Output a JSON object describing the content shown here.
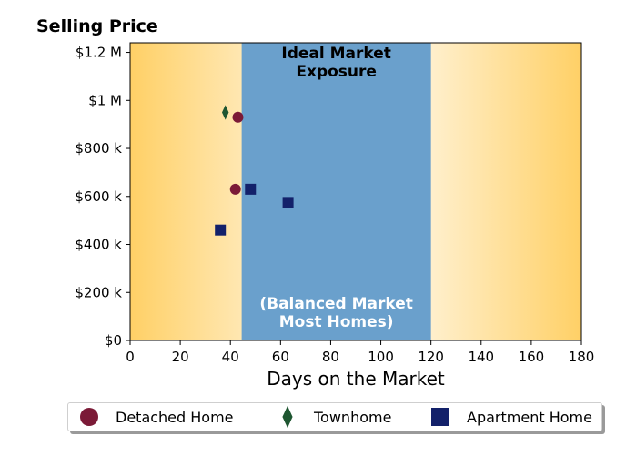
{
  "chart_data": {
    "type": "scatter",
    "title": "Selling Price",
    "xlabel": "Days on the Market",
    "ylabel": "",
    "xlim": [
      0,
      180
    ],
    "ylim": [
      0,
      1240000
    ],
    "x_ticks": [
      0,
      20,
      40,
      60,
      80,
      100,
      120,
      140,
      160,
      180
    ],
    "x_tick_labels": [
      "0",
      "20",
      "40",
      "60",
      "80",
      "100",
      "120",
      "140",
      "160",
      "180"
    ],
    "y_ticks": [
      0,
      200000,
      400000,
      600000,
      800000,
      1000000,
      1200000
    ],
    "y_tick_labels": [
      "$0",
      "$200 k",
      "$400 k",
      "$600 k",
      "$800 k",
      "$1 M",
      "$1.2 M"
    ],
    "grid": false,
    "legend_position": "bottom",
    "regions": [
      {
        "x_start": 44.5,
        "x_end": 120,
        "color": "#6aa0cc",
        "label_top": "Ideal Market\nExposure",
        "label_bottom": "(Balanced Market\nMost Homes)"
      }
    ],
    "background_gradient": {
      "edge_color": "#ffd066",
      "center_color": "#ffffff"
    },
    "series": [
      {
        "name": "Detached Home",
        "marker": "circle",
        "color": "#7b1a37",
        "points": [
          {
            "x": 43,
            "y": 930000
          },
          {
            "x": 42,
            "y": 630000
          }
        ]
      },
      {
        "name": "Townhome",
        "marker": "diamond",
        "color": "#1e5631",
        "points": [
          {
            "x": 38,
            "y": 950000
          }
        ]
      },
      {
        "name": "Apartment Home",
        "marker": "square",
        "color": "#13216a",
        "points": [
          {
            "x": 48,
            "y": 630000
          },
          {
            "x": 63,
            "y": 575000
          },
          {
            "x": 36,
            "y": 460000
          }
        ]
      }
    ]
  }
}
